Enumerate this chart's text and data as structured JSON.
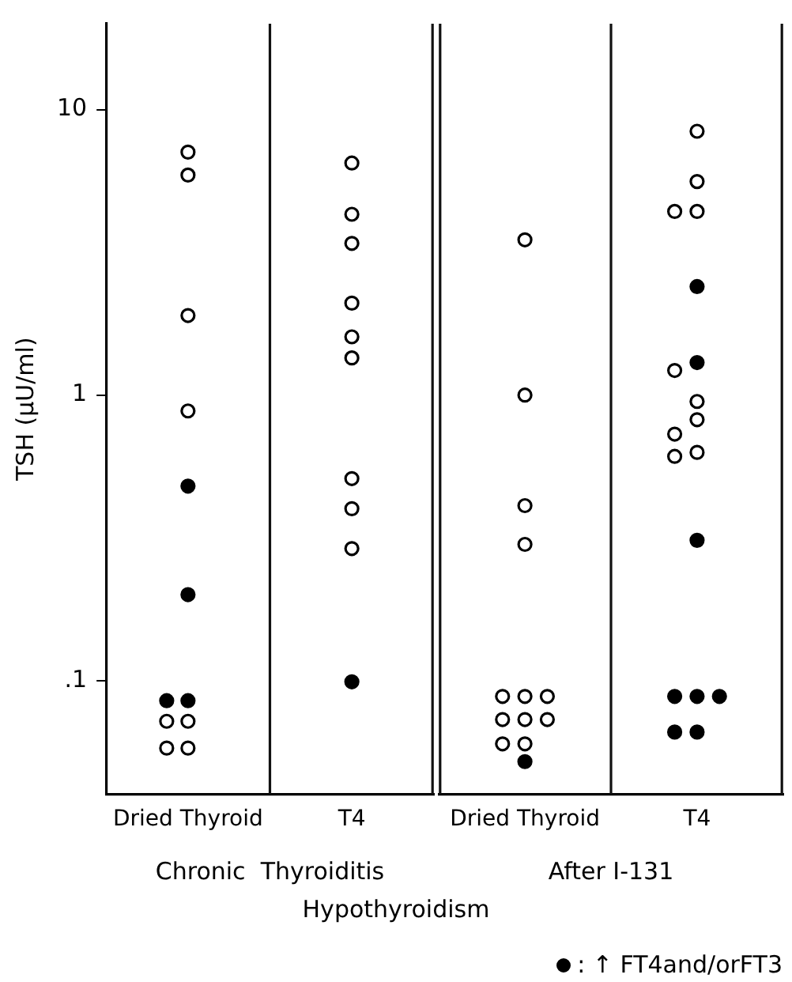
{
  "chart_data": [
    {
      "type": "scatter",
      "xlabel": "Chronic  Thyroiditis",
      "ylabel": "TSH (μU/ml)",
      "log": "y",
      "grid": false,
      "marker": "circle",
      "categories": [
        "Dried Thyroid",
        "T4"
      ],
      "ylim": [
        0.04,
        20
      ],
      "yticks": [
        {
          "value": 0.1,
          "label": ".1"
        },
        1,
        10
      ],
      "annotations": [
        "Hypothyroidism"
      ],
      "series": [
        {
          "color": "#ffffff",
          "x": [
            "Dried Thyroid",
            "Dried Thyroid",
            "Dried Thyroid",
            "Dried Thyroid",
            "Dried Thyroid",
            "Dried Thyroid",
            "Dried Thyroid",
            "Dried Thyroid",
            "T4",
            "T4",
            "T4",
            "T4",
            "T4",
            "T4",
            "T4",
            "T4",
            "T4"
          ],
          "values": [
            7.1,
            5.9,
            1.9,
            0.88,
            0.072,
            0.072,
            0.058,
            0.058,
            6.5,
            4.3,
            3.4,
            2.1,
            1.6,
            1.35,
            0.51,
            0.4,
            0.29
          ]
        },
        {
          "color": "#000000",
          "x": [
            "Dried Thyroid",
            "Dried Thyroid",
            "Dried Thyroid",
            "Dried Thyroid",
            "T4"
          ],
          "values": [
            0.48,
            0.2,
            0.085,
            0.085,
            0.099
          ]
        }
      ]
    },
    {
      "type": "scatter",
      "xlabel": "After I-131",
      "log": "y",
      "grid": false,
      "marker": "circle",
      "legend": "bottom right",
      "tick_labels": "x",
      "categories": [
        "Dried Thyroid",
        "T4"
      ],
      "ylim": [
        0.04,
        20
      ],
      "series": [
        {
          "color": "#ffffff",
          "x": [
            "Dried Thyroid",
            "Dried Thyroid",
            "Dried Thyroid",
            "Dried Thyroid",
            "Dried Thyroid",
            "Dried Thyroid",
            "Dried Thyroid",
            "Dried Thyroid",
            "Dried Thyroid",
            "Dried Thyroid",
            "Dried Thyroid",
            "Dried Thyroid",
            "T4",
            "T4",
            "T4",
            "T4",
            "T4",
            "T4",
            "T4",
            "T4",
            "T4",
            "T4"
          ],
          "values": [
            3.5,
            1.0,
            0.41,
            0.3,
            0.088,
            0.088,
            0.088,
            0.073,
            0.073,
            0.073,
            0.06,
            0.06,
            8.4,
            5.6,
            4.4,
            4.4,
            1.22,
            0.95,
            0.82,
            0.73,
            0.61,
            0.63
          ]
        },
        {
          "name": ": ↑ FT4and/orFT3",
          "color": "#000000",
          "x": [
            "Dried Thyroid",
            "T4",
            "T4",
            "T4",
            "T4",
            "T4",
            "T4",
            "T4",
            "T4"
          ],
          "values": [
            0.052,
            2.4,
            1.3,
            0.31,
            0.088,
            0.088,
            0.088,
            0.066,
            0.066
          ]
        }
      ]
    }
  ]
}
